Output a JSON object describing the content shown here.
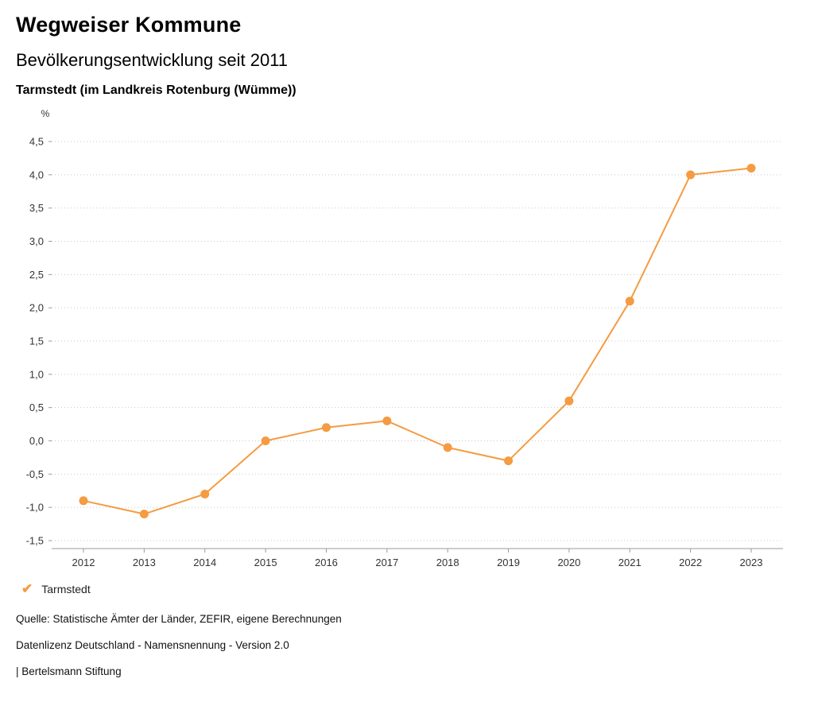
{
  "header": {
    "title": "Wegweiser Kommune",
    "subtitle": "Bevölkerungsentwicklung seit 2011",
    "region": "Tarmstedt (im Landkreis Rotenburg (Wümme))"
  },
  "chart_data": {
    "type": "line",
    "title": "Bevölkerungsentwicklung seit 2011",
    "subtitle": "Tarmstedt (im Landkreis Rotenburg (Wümme))",
    "unit_label": "%",
    "xlabel": "",
    "ylabel": "%",
    "categories": [
      "2012",
      "2013",
      "2014",
      "2015",
      "2016",
      "2017",
      "2018",
      "2019",
      "2020",
      "2021",
      "2022",
      "2023"
    ],
    "series": [
      {
        "name": "Tarmstedt",
        "color": "#f59b42",
        "values": [
          -0.9,
          -1.1,
          -0.8,
          0.0,
          0.2,
          0.3,
          -0.1,
          -0.3,
          0.6,
          2.1,
          4.0,
          4.1
        ]
      }
    ],
    "ylim": [
      -1.5,
      4.5
    ],
    "ytick_step": 0.5,
    "decimal_separator": ",",
    "grid": "horizontal-dotted",
    "legend_position": "bottom-left"
  },
  "legend": {
    "items": [
      {
        "label": "Tarmstedt",
        "color": "#f59b42",
        "check_icon": "✔"
      }
    ]
  },
  "footer": {
    "source": "Quelle: Statistische Ämter der Länder, ZEFIR, eigene Berechnungen",
    "license": "Datenlizenz Deutschland - Namensnennung - Version 2.0",
    "attribution": "| Bertelsmann Stiftung"
  },
  "colors": {
    "accent": "#f59b42",
    "grid": "#c9c9c9",
    "axis": "#9b9b9b",
    "tick_text": "#333333"
  }
}
